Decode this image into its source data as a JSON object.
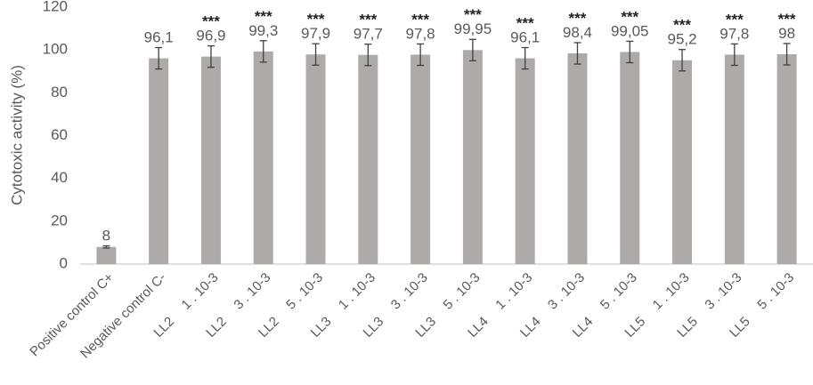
{
  "chart_data": {
    "type": "bar",
    "ylabel": "Cytotoxic activity  (%)",
    "categories": [
      [
        "Positive control C+"
      ],
      [
        "Negative control C-"
      ],
      [
        "LL2",
        "1 . 10-3"
      ],
      [
        "LL2",
        "3 . 10-3"
      ],
      [
        "LL2",
        "5 . 10-3"
      ],
      [
        "LL3",
        "1 . 10-3"
      ],
      [
        "LL3",
        "3 . 10-3"
      ],
      [
        "LL3",
        "5 . 10-3"
      ],
      [
        "LL4",
        "1 . 10-3"
      ],
      [
        "LL4",
        "3 . 10-3"
      ],
      [
        "LL4",
        "5 . 10-3"
      ],
      [
        "LL5",
        "1 . 10-3"
      ],
      [
        "LL5",
        "3 . 10-3"
      ],
      [
        "LL5",
        "5 . 10-3"
      ]
    ],
    "values": [
      8,
      96.1,
      96.9,
      99.3,
      97.9,
      97.7,
      97.8,
      99.95,
      96.1,
      98.4,
      99.05,
      95.2,
      97.8,
      98
    ],
    "value_labels": [
      "8",
      "96,1",
      "96,9",
      "99,3",
      "97,9",
      "97,7",
      "97,8",
      "99,95",
      "96,1",
      "98,4",
      "99,05",
      "95,2",
      "97,8",
      "98"
    ],
    "errors": [
      0.5,
      5,
      5,
      5,
      5,
      5,
      5,
      5,
      5,
      5,
      5,
      5,
      5,
      5
    ],
    "significance": [
      null,
      null,
      "***",
      "***",
      "***",
      "***",
      "***",
      "***",
      "***",
      "***",
      "***",
      "***",
      "***",
      "***"
    ],
    "color": "#aeaaaa",
    "error_color": "#404040",
    "ylim": [
      0,
      120
    ],
    "yticks": [
      0,
      20,
      40,
      60,
      80,
      100,
      120
    ],
    "grid": false
  }
}
